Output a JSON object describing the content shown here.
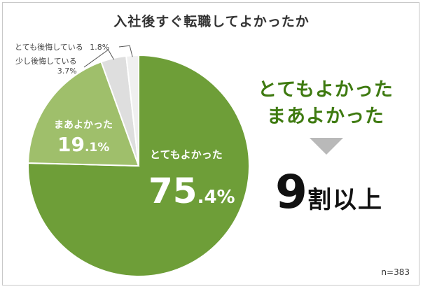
{
  "title": "入社後すぐ転職してよかったか",
  "chart_data": {
    "type": "pie",
    "title": "入社後すぐ転職してよかったか",
    "slices": [
      {
        "label": "とてもよかった",
        "value": 75.4,
        "color": "#6e9e38",
        "display": "75.4%"
      },
      {
        "label": "まあよかった",
        "value": 19.1,
        "color": "#9fbf6b",
        "display": "19.1%"
      },
      {
        "label": "少し後悔している",
        "value": 3.7,
        "color": "#dedede",
        "display": "3.7%"
      },
      {
        "label": "とても後悔している",
        "value": 1.8,
        "color": "#f0f0f0",
        "display": "1.8%"
      }
    ],
    "sample": "n=383"
  },
  "labels": {
    "big_slice": {
      "text": "とてもよかった",
      "num_int": "75",
      "num_dec": ".4%"
    },
    "mid_slice": {
      "text": "まあよかった",
      "num_int": "19",
      "num_dec": ".1%"
    },
    "small1": {
      "text": "少し後悔している",
      "value": "3.7%"
    },
    "small2": {
      "text": "とても後悔している",
      "value": "1.8%"
    }
  },
  "summary": {
    "line1": "とてもよかった",
    "line2": "まあよかった",
    "result_num": "9",
    "result_text": "割以上"
  },
  "sample_size": "n=383"
}
